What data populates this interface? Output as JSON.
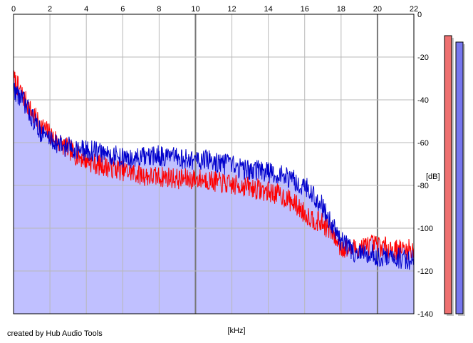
{
  "credit": "created by Hub Audio Tools",
  "chart_data": {
    "type": "area",
    "xlabel": "[kHz]",
    "ylabel": "[dB]",
    "xlim": [
      0,
      22
    ],
    "ylim": [
      -140,
      0
    ],
    "x_ticks": [
      0,
      2,
      4,
      6,
      8,
      10,
      12,
      14,
      16,
      18,
      20,
      22
    ],
    "y_ticks": [
      0,
      -20,
      -40,
      -60,
      -80,
      -100,
      -120,
      -140
    ],
    "grid": true,
    "x": [
      0,
      0.5,
      1,
      1.5,
      2,
      2.5,
      3,
      3.5,
      4,
      4.5,
      5,
      5.5,
      6,
      6.5,
      7,
      7.5,
      8,
      8.5,
      9,
      9.5,
      10,
      10.5,
      11,
      11.5,
      12,
      12.5,
      13,
      13.5,
      14,
      14.5,
      15,
      15.5,
      16,
      16.5,
      17,
      17.5,
      18,
      18.5,
      19,
      19.5,
      20,
      20.5,
      21,
      21.5,
      22
    ],
    "series": [
      {
        "color": "#ff0000",
        "values": [
          -30,
          -38,
          -46,
          -52,
          -56,
          -60,
          -63,
          -66,
          -68,
          -70,
          -71,
          -72,
          -73,
          -74,
          -75,
          -76,
          -76,
          -76,
          -77,
          -77,
          -77,
          -77,
          -78,
          -79,
          -80,
          -80,
          -81,
          -82,
          -83,
          -84,
          -86,
          -89,
          -93,
          -96,
          -98,
          -102,
          -109,
          -110,
          -109,
          -108,
          -108,
          -109,
          -110,
          -110,
          -110
        ]
      },
      {
        "color": "#0000cc",
        "values": [
          -35,
          -40,
          -48,
          -55,
          -58,
          -61,
          -62,
          -63,
          -64,
          -64,
          -65,
          -66,
          -67,
          -68,
          -67,
          -67,
          -66,
          -67,
          -67,
          -68,
          -68,
          -68,
          -69,
          -70,
          -71,
          -72,
          -73,
          -73,
          -74,
          -75,
          -76,
          -78,
          -80,
          -85,
          -90,
          -98,
          -106,
          -110,
          -112,
          -112,
          -113,
          -114,
          -114,
          -114,
          -115
        ]
      }
    ],
    "fill_color": "#c0c0ff"
  },
  "meters": [
    {
      "color": "#ee7070",
      "level_db": -10
    },
    {
      "color": "#7777ee",
      "level_db": -13
    }
  ]
}
